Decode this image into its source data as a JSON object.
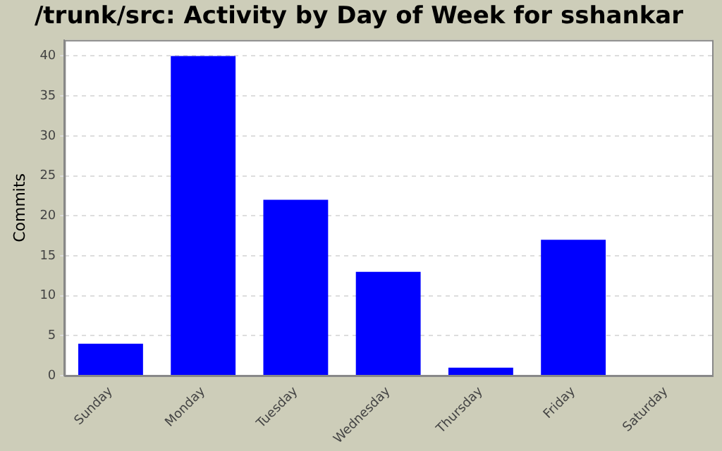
{
  "chart_data": {
    "type": "bar",
    "title": "/trunk/src: Activity by Day of Week for sshankar",
    "ylabel": "Commits",
    "categories": [
      "Sunday",
      "Monday",
      "Tuesday",
      "Wednesday",
      "Thursday",
      "Friday",
      "Saturday"
    ],
    "values": [
      4,
      40,
      22,
      13,
      1,
      17,
      0
    ],
    "color": "#0000ff",
    "ylim": [
      0,
      42
    ],
    "yticks": [
      0,
      5,
      10,
      15,
      20,
      25,
      30,
      35,
      40
    ],
    "grid": "y",
    "legend": false
  }
}
